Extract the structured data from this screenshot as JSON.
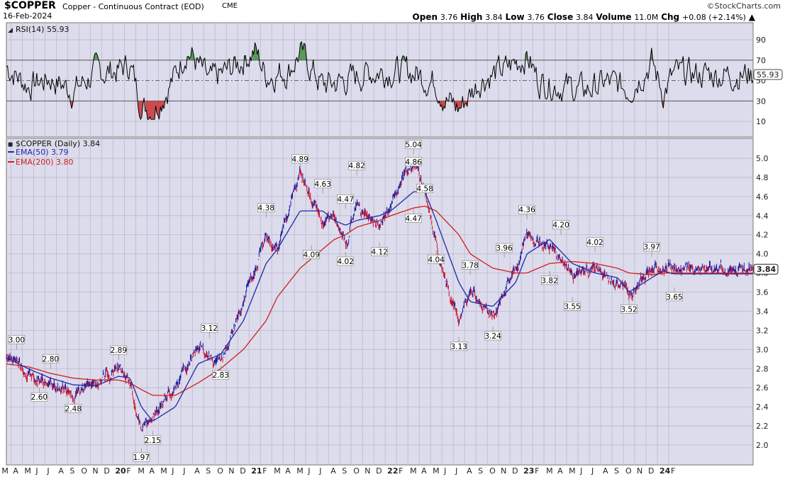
{
  "header": {
    "symbol": "$COPPER",
    "description": "Copper - Continuous Contract (EOD)",
    "exchange": "CME",
    "date": "16-Feb-2024",
    "brand": "©StockCharts.com",
    "open_label": "Open",
    "open": "3.76",
    "high_label": "High",
    "high": "3.84",
    "low_label": "Low",
    "low": "3.76",
    "close_label": "Close",
    "close": "3.84",
    "volume_label": "Volume",
    "volume": "11.0M",
    "chg_label": "Chg",
    "chg": "+0.08 (+2.14%)"
  },
  "colors": {
    "panel_bg": "#dcdcec",
    "price_up": "#1a1aa0",
    "price_down": "#d0102a",
    "ema50": "#1f2aa8",
    "ema200": "#d21e1e",
    "rsi_line": "#000000",
    "rsi_overbought_fill": "#3f8f3f",
    "rsi_oversold_fill": "#c83232"
  },
  "rsi_panel": {
    "legend": "RSI(14) 55.93",
    "current_label": "55.93",
    "ticks": [
      "90",
      "70",
      "50",
      "30",
      "10"
    ]
  },
  "price_panel": {
    "legend_main": "$COPPER (Daily) 3.84",
    "legend_ema50": "EMA(50) 3.79",
    "legend_ema200": "EMA(200) 3.80",
    "current_label": "3.84",
    "ticks": [
      "5.0",
      "4.8",
      "4.6",
      "4.4",
      "4.2",
      "4.0",
      "3.8",
      "3.6",
      "3.4",
      "3.2",
      "3.0",
      "2.8",
      "2.6",
      "2.4",
      "2.2",
      "2.0"
    ]
  },
  "chart_data": [
    {
      "type": "line",
      "title": "RSI(14) 55.93",
      "ylim": [
        0,
        100
      ],
      "levels": [
        70,
        50,
        30
      ],
      "series": [
        {
          "name": "RSI(14)",
          "x": [
            "2019-03",
            "2019-05",
            "2019-07",
            "2019-09",
            "2019-11",
            "2020-01",
            "2020-02",
            "2020-03",
            "2020-04",
            "2020-06",
            "2020-07",
            "2020-09",
            "2020-11",
            "2021-01",
            "2021-02",
            "2021-04",
            "2021-05",
            "2021-07",
            "2021-09",
            "2021-11",
            "2022-01",
            "2022-03",
            "2022-05",
            "2022-06",
            "2022-07",
            "2022-09",
            "2022-11",
            "2023-01",
            "2023-02",
            "2023-04",
            "2023-06",
            "2023-08",
            "2023-10",
            "2023-12",
            "2024-01",
            "2024-02"
          ],
          "values": [
            65,
            45,
            52,
            40,
            58,
            60,
            66,
            25,
            20,
            55,
            82,
            48,
            62,
            80,
            55,
            60,
            78,
            45,
            50,
            58,
            60,
            58,
            48,
            30,
            22,
            52,
            60,
            75,
            50,
            45,
            40,
            48,
            42,
            68,
            38,
            56
          ]
        }
      ]
    },
    {
      "type": "line",
      "title": "$COPPER (Daily) 3.84",
      "ylim": [
        1.9,
        5.1
      ],
      "x": [
        "2019-03",
        "2019-05",
        "2019-07",
        "2019-09",
        "2019-11",
        "2020-01",
        "2020-02",
        "2020-03",
        "2020-04",
        "2020-06",
        "2020-08",
        "2020-10",
        "2020-12",
        "2021-02",
        "2021-03",
        "2021-05",
        "2021-07",
        "2021-08",
        "2021-09",
        "2021-10",
        "2021-12",
        "2022-01",
        "2022-03",
        "2022-04",
        "2022-05",
        "2022-07",
        "2022-08",
        "2022-10",
        "2022-12",
        "2023-01",
        "2023-03",
        "2023-05",
        "2023-07",
        "2023-09",
        "2023-10",
        "2023-12",
        "2024-01",
        "2024-02"
      ],
      "series": [
        {
          "name": "$COPPER (Daily)",
          "values": [
            2.95,
            2.75,
            2.62,
            2.55,
            2.65,
            2.85,
            2.65,
            2.15,
            2.3,
            2.6,
            3.0,
            2.85,
            3.5,
            4.2,
            4.05,
            4.85,
            4.35,
            4.4,
            4.1,
            4.5,
            4.3,
            4.5,
            4.95,
            4.7,
            4.1,
            3.3,
            3.6,
            3.35,
            3.8,
            4.2,
            4.05,
            3.75,
            3.85,
            3.7,
            3.55,
            3.9,
            3.85,
            3.84
          ]
        },
        {
          "name": "EMA(50) 3.79",
          "values": [
            2.92,
            2.8,
            2.7,
            2.63,
            2.62,
            2.72,
            2.7,
            2.4,
            2.25,
            2.4,
            2.85,
            2.95,
            3.3,
            3.9,
            4.05,
            4.45,
            4.45,
            4.35,
            4.3,
            4.35,
            4.4,
            4.45,
            4.65,
            4.65,
            4.35,
            3.7,
            3.5,
            3.45,
            3.7,
            4.0,
            4.15,
            3.9,
            3.8,
            3.75,
            3.6,
            3.75,
            3.82,
            3.79
          ]
        },
        {
          "name": "EMA(200) 3.80",
          "values": [
            2.85,
            2.82,
            2.75,
            2.7,
            2.68,
            2.68,
            2.65,
            2.58,
            2.52,
            2.52,
            2.65,
            2.8,
            3.0,
            3.3,
            3.55,
            3.85,
            4.05,
            4.15,
            4.2,
            4.28,
            4.35,
            4.4,
            4.48,
            4.5,
            4.45,
            4.2,
            4.0,
            3.85,
            3.8,
            3.8,
            3.9,
            3.92,
            3.9,
            3.85,
            3.8,
            3.78,
            3.8,
            3.8
          ]
        }
      ],
      "annotations": [
        {
          "label": "3.00",
          "x": "2019-04",
          "y": 3.0
        },
        {
          "label": "2.80",
          "x": "2019-07",
          "y": 2.8
        },
        {
          "label": "2.60",
          "x": "2019-06",
          "y": 2.6
        },
        {
          "label": "2.48",
          "x": "2019-09",
          "y": 2.48
        },
        {
          "label": "2.89",
          "x": "2020-01",
          "y": 2.89
        },
        {
          "label": "1.97",
          "x": "2020-03",
          "y": 1.97
        },
        {
          "label": "2.15",
          "x": "2020-04",
          "y": 2.15
        },
        {
          "label": "3.12",
          "x": "2020-09",
          "y": 3.12
        },
        {
          "label": "2.83",
          "x": "2020-10",
          "y": 2.83
        },
        {
          "label": "4.38",
          "x": "2021-02",
          "y": 4.38
        },
        {
          "label": "4.89",
          "x": "2021-05",
          "y": 4.89
        },
        {
          "label": "4.09",
          "x": "2021-06",
          "y": 4.09
        },
        {
          "label": "4.63",
          "x": "2021-07",
          "y": 4.63
        },
        {
          "label": "4.47",
          "x": "2021-09",
          "y": 4.47
        },
        {
          "label": "4.02",
          "x": "2021-09",
          "y": 4.02
        },
        {
          "label": "4.82",
          "x": "2021-10",
          "y": 4.82
        },
        {
          "label": "4.12",
          "x": "2021-12",
          "y": 4.12
        },
        {
          "label": "5.04",
          "x": "2022-03",
          "y": 5.04
        },
        {
          "label": "4.86",
          "x": "2022-03",
          "y": 4.86
        },
        {
          "label": "4.47",
          "x": "2022-03",
          "y": 4.47
        },
        {
          "label": "4.58",
          "x": "2022-04",
          "y": 4.58
        },
        {
          "label": "4.04",
          "x": "2022-05",
          "y": 4.04
        },
        {
          "label": "3.13",
          "x": "2022-07",
          "y": 3.13
        },
        {
          "label": "3.78",
          "x": "2022-08",
          "y": 3.78
        },
        {
          "label": "3.24",
          "x": "2022-10",
          "y": 3.24
        },
        {
          "label": "3.96",
          "x": "2022-11",
          "y": 3.96
        },
        {
          "label": "4.36",
          "x": "2023-01",
          "y": 4.36
        },
        {
          "label": "3.82",
          "x": "2023-03",
          "y": 3.82
        },
        {
          "label": "4.20",
          "x": "2023-04",
          "y": 4.2
        },
        {
          "label": "3.55",
          "x": "2023-05",
          "y": 3.55
        },
        {
          "label": "4.02",
          "x": "2023-07",
          "y": 4.02
        },
        {
          "label": "3.52",
          "x": "2023-10",
          "y": 3.52
        },
        {
          "label": "3.97",
          "x": "2023-12",
          "y": 3.97
        },
        {
          "label": "3.65",
          "x": "2024-02",
          "y": 3.65
        }
      ],
      "x_tick_labels": [
        "M",
        "A",
        "M",
        "J",
        "J",
        "A",
        "S",
        "O",
        "N",
        "D",
        "20",
        "F",
        "M",
        "A",
        "M",
        "J",
        "J",
        "A",
        "S",
        "O",
        "N",
        "D",
        "21",
        "F",
        "M",
        "A",
        "M",
        "J",
        "J",
        "A",
        "S",
        "O",
        "N",
        "D",
        "22",
        "F",
        "M",
        "A",
        "M",
        "J",
        "J",
        "A",
        "S",
        "O",
        "N",
        "D",
        "23",
        "F",
        "M",
        "A",
        "M",
        "J",
        "J",
        "A",
        "S",
        "O",
        "N",
        "D",
        "24",
        "F"
      ]
    }
  ]
}
